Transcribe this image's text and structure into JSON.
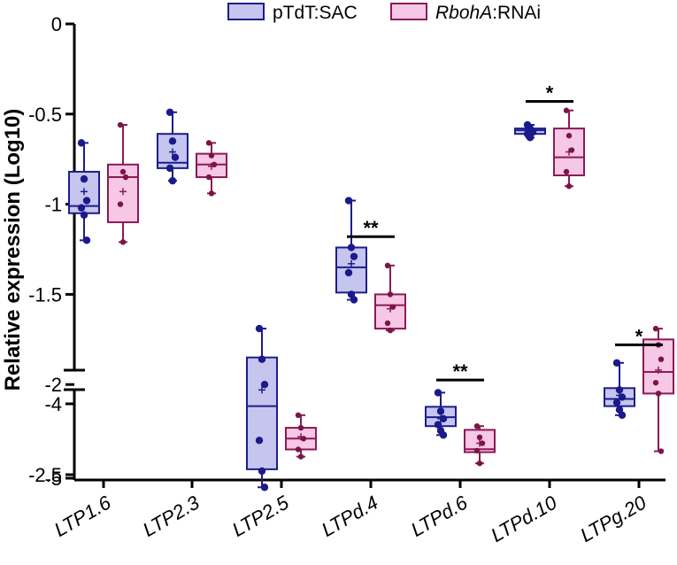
{
  "chart_data": {
    "type": "boxplot",
    "title": "",
    "xlabel": "",
    "ylabel": "Relative expression (Log10)",
    "y_axis_break": {
      "upper_segment": [
        -2.6,
        0
      ],
      "lower_segment": [
        -5,
        -3.8
      ]
    },
    "yticks_upper": [
      {
        "value": 0,
        "label": "0"
      },
      {
        "value": -0.5,
        "label": "-0.5"
      },
      {
        "value": -1,
        "label": "-1"
      },
      {
        "value": -1.5,
        "label": "-1.5"
      },
      {
        "value": -2,
        "label": "-2"
      },
      {
        "value": -2.5,
        "label": "-2.5"
      }
    ],
    "yticks_lower": [
      {
        "value": -4,
        "label": "-4"
      },
      {
        "value": -5,
        "label": "-5"
      }
    ],
    "categories": [
      "LTP1.6",
      "LTP2.3",
      "LTP2.5",
      "LTPd.4",
      "LTPd.6",
      "LTPd.10",
      "LTPg.20"
    ],
    "legend": [
      {
        "prefix": "pTdT:SAC",
        "italic": "",
        "suffix": "",
        "fill": "#c5c5ef",
        "stroke": "#1d1d8a",
        "point": "#1a1a8c"
      },
      {
        "prefix": "",
        "italic": "RbohA",
        "suffix": ":RNAi",
        "fill": "#f7c8e6",
        "stroke": "#8c1a55",
        "point": "#7a1646"
      }
    ],
    "series": [
      {
        "name": "pTdT:SAC",
        "boxes": [
          {
            "min": -1.2,
            "q1": -1.05,
            "median": -1.01,
            "q3": -0.82,
            "max": -0.66,
            "mean": -0.93,
            "points": [
              -0.66,
              -0.86,
              -0.98,
              -1.02,
              -1.06,
              -1.2
            ]
          },
          {
            "min": -0.87,
            "q1": -0.8,
            "median": -0.77,
            "q3": -0.61,
            "max": -0.49,
            "mean": -0.71,
            "points": [
              -0.49,
              -0.65,
              -0.74,
              -0.8,
              -0.87
            ]
          },
          {
            "min": -2.57,
            "q1": -2.47,
            "median": -2.12,
            "q3": -1.85,
            "max": -1.69,
            "mean": -2.03,
            "points": [
              -1.69,
              -1.86,
              -2.0,
              -2.31,
              -2.48,
              -2.57
            ]
          },
          {
            "min": -1.53,
            "q1": -1.49,
            "median": -1.35,
            "q3": -1.24,
            "max": -0.98,
            "mean": -1.33,
            "points": [
              -0.98,
              -1.24,
              -1.29,
              -1.38,
              -1.5,
              -1.53
            ]
          },
          {
            "min": -4.42,
            "q1": -4.3,
            "median": -4.18,
            "q3": -4.04,
            "max": -3.85,
            "mean": -4.2,
            "points": [
              -3.85,
              -4.1,
              -4.2,
              -4.28,
              -4.36,
              -4.42
            ]
          },
          {
            "min": -0.63,
            "q1": -0.61,
            "median": -0.59,
            "q3": -0.58,
            "max": -0.56,
            "mean": -0.6,
            "points": [
              -0.56,
              -0.58,
              -0.6,
              -0.61,
              -0.63
            ]
          },
          {
            "min": -2.17,
            "q1": -2.12,
            "median": -2.08,
            "q3": -2.02,
            "max": -1.88,
            "mean": -2.06,
            "points": [
              -1.88,
              -2.03,
              -2.07,
              -2.1,
              -2.14,
              -2.17
            ]
          }
        ]
      },
      {
        "name": "RbohA:RNAi",
        "boxes": [
          {
            "min": -1.21,
            "q1": -1.1,
            "median": -0.85,
            "q3": -0.78,
            "max": -0.56,
            "mean": -0.93,
            "points": [
              -0.56,
              -0.82,
              -0.85,
              -1.0,
              -1.21
            ]
          },
          {
            "min": -0.94,
            "q1": -0.85,
            "median": -0.78,
            "q3": -0.72,
            "max": -0.66,
            "mean": -0.79,
            "points": [
              -0.66,
              -0.73,
              -0.78,
              -0.85,
              -0.94
            ]
          },
          {
            "min": -2.4,
            "q1": -2.36,
            "median": -2.3,
            "q3": -2.24,
            "max": -2.17,
            "mean": -2.29,
            "points": [
              -2.17,
              -2.24,
              -2.3,
              -2.36,
              -2.4
            ]
          },
          {
            "min": -1.7,
            "q1": -1.69,
            "median": -1.56,
            "q3": -1.5,
            "max": -1.34,
            "mean": -1.58,
            "points": [
              -1.34,
              -1.5,
              -1.57,
              -1.66,
              -1.7
            ]
          },
          {
            "min": -4.8,
            "q1": -4.65,
            "median": -4.61,
            "q3": -4.35,
            "max": -4.3,
            "mean": -4.53,
            "points": [
              -4.3,
              -4.45,
              -4.53,
              -4.63,
              -4.8
            ]
          },
          {
            "min": -0.9,
            "q1": -0.84,
            "median": -0.74,
            "q3": -0.58,
            "max": -0.48,
            "mean": -0.71,
            "points": [
              -0.48,
              -0.62,
              -0.7,
              -0.82,
              -0.9
            ]
          },
          {
            "min": -2.37,
            "q1": -2.05,
            "median": -1.93,
            "q3": -1.75,
            "max": -1.69,
            "mean": -1.92,
            "points": [
              -1.69,
              -1.78,
              -1.86,
              -1.99,
              -2.05,
              -2.37
            ]
          }
        ]
      }
    ],
    "significance": [
      {
        "category": "LTPd.4",
        "label": "**",
        "y": -1.18
      },
      {
        "category": "LTPd.6",
        "label": "**",
        "y": -3.68
      },
      {
        "category": "LTPd.10",
        "label": "*",
        "y": -0.43
      },
      {
        "category": "LTPg.20",
        "label": "*",
        "y": -1.78
      }
    ]
  }
}
